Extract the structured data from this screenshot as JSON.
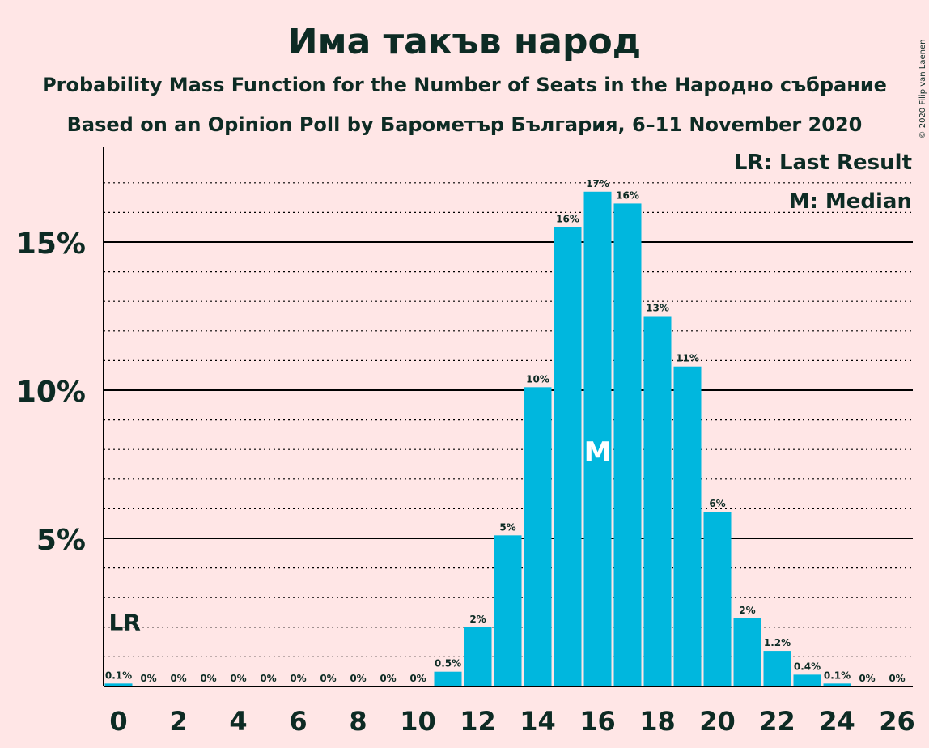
{
  "copyright": "© 2020 Filip van Laenen",
  "chart_data": {
    "type": "bar",
    "title": "Има такъв народ",
    "subtitle1": "Probability Mass Function for the Number of Seats in the Народно събрание",
    "subtitle2": "Based on an Opinion Poll by Барометър България, 6–11 November 2020",
    "legend": [
      "LR: Last Result",
      "M: Median"
    ],
    "legend_position": "top-right",
    "xlabel": "",
    "ylabel": "",
    "x_ticks": [
      "0",
      "2",
      "4",
      "6",
      "8",
      "10",
      "12",
      "14",
      "16",
      "18",
      "20",
      "22",
      "24",
      "26"
    ],
    "y_ticks": [
      "5%",
      "10%",
      "15%"
    ],
    "ylim": [
      0,
      18
    ],
    "categories": [
      "0",
      "1",
      "2",
      "3",
      "4",
      "5",
      "6",
      "7",
      "8",
      "9",
      "10",
      "11",
      "12",
      "13",
      "14",
      "15",
      "16",
      "17",
      "18",
      "19",
      "20",
      "21",
      "22",
      "23",
      "24",
      "25",
      "26"
    ],
    "values": [
      0.1,
      0,
      0,
      0,
      0,
      0,
      0,
      0,
      0,
      0,
      0,
      0.5,
      2.0,
      5.1,
      10.1,
      15.5,
      16.7,
      16.3,
      12.5,
      10.8,
      5.9,
      2.3,
      1.2,
      0.4,
      0.1,
      0,
      0
    ],
    "labels": [
      "0.1%",
      "0%",
      "0%",
      "0%",
      "0%",
      "0%",
      "0%",
      "0%",
      "0%",
      "0%",
      "0%",
      "0.5%",
      "2%",
      "5%",
      "10%",
      "16%",
      "17%",
      "16%",
      "13%",
      "11%",
      "6%",
      "2%",
      "1.2%",
      "0.4%",
      "0.1%",
      "0%",
      "0%"
    ],
    "last_result_seat": 0,
    "last_result_label": "LR",
    "median_seat": 16,
    "median_label": "M",
    "colors": {
      "bar": "#00b7de",
      "background": "#ffe6e6",
      "text": "#0d2b24"
    }
  }
}
